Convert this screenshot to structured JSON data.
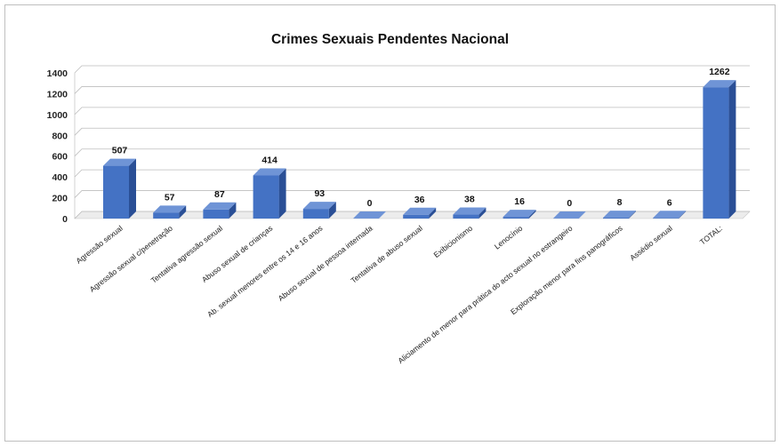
{
  "chart_data": {
    "type": "bar",
    "title": "Crimes Sexuais Pendentes Nacional",
    "xlabel": "",
    "ylabel": "",
    "ylim": [
      0,
      1400
    ],
    "yticks": [
      0,
      200,
      400,
      600,
      800,
      1000,
      1200,
      1400
    ],
    "ytick_labels": [
      "0",
      "200",
      "400",
      "600",
      "800",
      "1000",
      "1200",
      "1400"
    ],
    "grid": true,
    "legend": "none",
    "bar_color": "#4472C4",
    "categories": [
      "Agressão sexual",
      "Agressão sexual c/penetração",
      "Tentativa agressão sexual",
      "Abuso sexual de crianças",
      "Ab. sexual menores entre os 14  e 16 anos",
      "Abuso sexual de pessoa internada",
      "Tentativa de abuso sexual",
      "Exibicionismo",
      "Lenocínio",
      "Aliciamento de menor para prática do acto sexual no estrangeiro",
      "Exploração menor para fins panográficos",
      "Assédio sexual",
      "TOTAL:"
    ],
    "values": [
      507,
      57,
      87,
      414,
      93,
      0,
      36,
      38,
      16,
      0,
      8,
      6,
      1262
    ],
    "data_labels": [
      "507",
      "57",
      "87",
      "414",
      "93",
      "0",
      "36",
      "38",
      "16",
      "0",
      "8",
      "6",
      "1262"
    ]
  }
}
